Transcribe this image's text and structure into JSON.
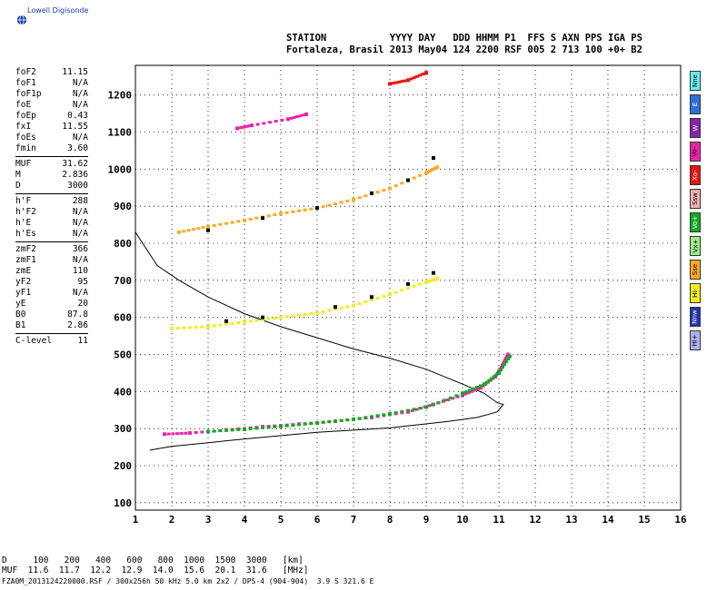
{
  "logo": {
    "text": "Lowell Digisonde",
    "icon": "globe-icon"
  },
  "header": {
    "line1": "STATION           YYYY DAY   DDD HHMM P1  FFS S AXN PPS IGA PS",
    "line2": "Fortaleza, Brasil 2013 May04 124 2200 RSF 005 2 713 100 +0+ B2"
  },
  "params": [
    {
      "label": "foF2",
      "value": "11.15"
    },
    {
      "label": "foF1",
      "value": "N/A"
    },
    {
      "label": "foF1p",
      "value": "N/A"
    },
    {
      "label": "foE",
      "value": "N/A"
    },
    {
      "label": "foEp",
      "value": "0.43"
    },
    {
      "label": "fxI",
      "value": "11.55"
    },
    {
      "label": "foEs",
      "value": "N/A"
    },
    {
      "label": "fmin",
      "value": "3.60"
    },
    {
      "label": "MUF",
      "value": "31.62"
    },
    {
      "label": "M",
      "value": "2.836"
    },
    {
      "label": "D",
      "value": "3000"
    },
    {
      "label": "h'F",
      "value": "288"
    },
    {
      "label": "h'F2",
      "value": "N/A"
    },
    {
      "label": "h'E",
      "value": "N/A"
    },
    {
      "label": "h'Es",
      "value": "N/A"
    },
    {
      "label": "zmF2",
      "value": "366"
    },
    {
      "label": "zmF1",
      "value": "N/A"
    },
    {
      "label": "zmE",
      "value": "110"
    },
    {
      "label": "yF2",
      "value": "95"
    },
    {
      "label": "yF1",
      "value": "N/A"
    },
    {
      "label": "yE",
      "value": "20"
    },
    {
      "label": "B0",
      "value": "87.8"
    },
    {
      "label": "B1",
      "value": "2.86"
    },
    {
      "label": "C-level",
      "value": "11"
    }
  ],
  "legend": [
    {
      "label": "Nne",
      "color": "#66eeee"
    },
    {
      "label": "E",
      "color": "#2f6fd6"
    },
    {
      "label": "W",
      "color": "#8a22aa"
    },
    {
      "label": "Vo-",
      "color": "#ee22aa"
    },
    {
      "label": "Xo-",
      "color": "#ee1111"
    },
    {
      "label": "Ssw",
      "color": "#f0b0b0"
    },
    {
      "label": "Vo+",
      "color": "#11aa22"
    },
    {
      "label": "Vx+",
      "color": "#99ee88"
    },
    {
      "label": "Sse",
      "color": "#ffaa22"
    },
    {
      "label": "Hi-",
      "color": "#eeee22"
    },
    {
      "label": "Nnw",
      "color": "#2233aa"
    },
    {
      "label": "Hi+",
      "color": "#aab0ee"
    }
  ],
  "table": {
    "d_line": "D     100   200   400   600   800  1000  1500  3000   [km]",
    "muf_line": "MUF  11.6  11.7  12.2  12.9  14.0  15.6  20.1  31.6   [MHz]"
  },
  "footer": "FZA0M_2013124220000.RSF / 300x256h 50 kHz 5.0 km 2x2 / DPS-4 (904-904)  3.9 S 321.6 E",
  "chart_data": {
    "type": "scatter",
    "xlabel": "",
    "ylabel": "",
    "xlim": [
      1,
      16
    ],
    "ylim": [
      80,
      1280
    ],
    "xticks": [
      1,
      2,
      3,
      4,
      5,
      6,
      7,
      8,
      9,
      10,
      11,
      12,
      13,
      14,
      15,
      16
    ],
    "yticks": [
      100,
      200,
      300,
      400,
      500,
      600,
      700,
      800,
      900,
      1000,
      1100,
      1200
    ],
    "grid": true,
    "profile_curve": {
      "name": "",
      "points": [
        [
          1.0,
          830
        ],
        [
          1.2,
          800
        ],
        [
          1.6,
          740
        ],
        [
          2.2,
          700
        ],
        [
          3.0,
          655
        ],
        [
          4.0,
          610
        ],
        [
          5.0,
          575
        ],
        [
          6.0,
          545
        ],
        [
          7.0,
          515
        ],
        [
          8.0,
          490
        ],
        [
          9.0,
          460
        ],
        [
          10.0,
          420
        ],
        [
          10.6,
          395
        ],
        [
          10.95,
          370
        ],
        [
          11.12,
          365
        ],
        [
          10.95,
          345
        ],
        [
          10.4,
          330
        ],
        [
          9.5,
          318
        ],
        [
          8.0,
          302
        ],
        [
          6.0,
          290
        ],
        [
          4.0,
          272
        ],
        [
          3.0,
          262
        ],
        [
          2.0,
          252
        ],
        [
          1.4,
          242
        ]
      ]
    },
    "traces": [
      {
        "name": "F2 o-mode",
        "color": "#ee22aa",
        "points": [
          [
            1.8,
            285
          ],
          [
            2.5,
            288
          ],
          [
            3.5,
            296
          ],
          [
            4.5,
            305
          ],
          [
            5.5,
            312
          ],
          [
            6.5,
            320
          ],
          [
            7.5,
            330
          ],
          [
            8.5,
            345
          ],
          [
            9.2,
            365
          ],
          [
            10.0,
            390
          ],
          [
            10.5,
            410
          ],
          [
            10.9,
            440
          ],
          [
            11.1,
            470
          ],
          [
            11.25,
            500
          ]
        ]
      },
      {
        "name": "F2 x-mode",
        "color": "#11aa22",
        "points": [
          [
            3.0,
            292
          ],
          [
            4.0,
            298
          ],
          [
            5.0,
            306
          ],
          [
            6.0,
            315
          ],
          [
            7.0,
            325
          ],
          [
            8.0,
            340
          ],
          [
            9.0,
            358
          ],
          [
            10.0,
            395
          ],
          [
            10.6,
            420
          ],
          [
            11.0,
            450
          ],
          [
            11.3,
            495
          ]
        ]
      },
      {
        "name": "2F first",
        "color": "#eeee22",
        "points": [
          [
            2.0,
            570
          ],
          [
            3.0,
            575
          ],
          [
            4.0,
            588
          ],
          [
            5.0,
            600
          ],
          [
            6.0,
            612
          ],
          [
            7.0,
            632
          ],
          [
            8.0,
            662
          ],
          [
            9.0,
            695
          ],
          [
            9.3,
            705
          ]
        ]
      },
      {
        "name": "2F second",
        "color": "#ffaa22",
        "points": [
          [
            2.2,
            830
          ],
          [
            3.0,
            845
          ],
          [
            4.0,
            862
          ],
          [
            5.0,
            880
          ],
          [
            6.0,
            895
          ],
          [
            7.0,
            918
          ],
          [
            8.0,
            948
          ],
          [
            9.0,
            990
          ],
          [
            9.3,
            1005
          ]
        ]
      },
      {
        "name": "3F",
        "color": "#ee22aa",
        "points": [
          [
            3.8,
            1110
          ],
          [
            4.2,
            1118
          ],
          [
            5.2,
            1135
          ],
          [
            5.7,
            1148
          ]
        ]
      },
      {
        "name": "4F",
        "color": "#ee1111",
        "points": [
          [
            8.0,
            1230
          ],
          [
            8.5,
            1240
          ],
          [
            9.0,
            1260
          ]
        ]
      },
      {
        "name": "2F black",
        "color": "#000000",
        "points": [
          [
            3.5,
            590
          ],
          [
            4.5,
            600
          ],
          [
            6.5,
            628
          ],
          [
            7.5,
            655
          ],
          [
            8.5,
            690
          ],
          [
            9.2,
            720
          ],
          [
            3.0,
            835
          ],
          [
            4.5,
            868
          ],
          [
            6.0,
            895
          ],
          [
            7.5,
            935
          ],
          [
            8.5,
            970
          ],
          [
            9.2,
            1030
          ]
        ]
      }
    ]
  }
}
